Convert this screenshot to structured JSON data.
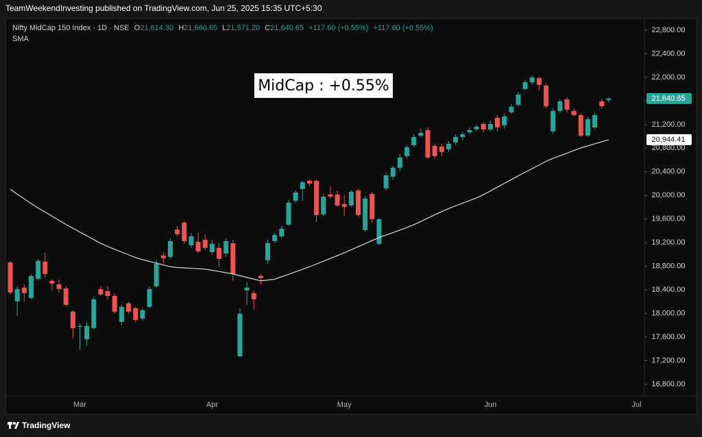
{
  "header": {
    "published": "TeamWeekendInvesting published on TradingView.com, Jun 25, 2025 15:35 UTC+5:30"
  },
  "footer": {
    "brand": "TradingView"
  },
  "chart_data": {
    "type": "candlestick",
    "title": "Nifty MidCap 150 Index · 1D · NSE",
    "ohlc_legend": [
      {
        "key": "O",
        "value": "21,614.30"
      },
      {
        "key": "H",
        "value": "21,660.65"
      },
      {
        "key": "L",
        "value": "21,571.20"
      },
      {
        "key": "C",
        "value": "21,640.65"
      }
    ],
    "change": "+117.60 (+0.55%)",
    "annotation": "MidCap : +0.55%",
    "up_color": "#26a69a",
    "down_color": "#ef5350",
    "grid": false,
    "categories": [
      null,
      null,
      null,
      null,
      null,
      null,
      null,
      null,
      null,
      null,
      "Mar",
      null,
      null,
      null,
      null,
      null,
      null,
      null,
      null,
      null,
      null,
      null,
      null,
      null,
      null,
      null,
      null,
      null,
      null,
      "Apr",
      null,
      null,
      null,
      null,
      null,
      null,
      null,
      null,
      null,
      null,
      null,
      null,
      null,
      null,
      null,
      null,
      null,
      null,
      "May",
      null,
      null,
      null,
      null,
      null,
      null,
      null,
      null,
      null,
      null,
      null,
      null,
      null,
      null,
      null,
      null,
      null,
      null,
      null,
      null,
      "Jun",
      null,
      null,
      null,
      null,
      null,
      null,
      null,
      null,
      null,
      null,
      null,
      null,
      null,
      null,
      null,
      null,
      null,
      null,
      null,
      null,
      "Jul"
    ],
    "open": [
      18866,
      18204,
      18436,
      18262,
      18587,
      18878,
      18553,
      18495,
      18425,
      18030,
      17775,
      17566,
      17752,
      18413,
      18378,
      18297,
      17856,
      18170,
      18088,
      17914,
      18112,
      18460,
      18982,
      18959,
      19423,
      19539,
      19156,
      19214,
      19249,
      19040,
      19110,
      19017,
      19191,
      17276,
      18390,
      18344,
      18634,
      18901,
      19226,
      19307,
      19504,
      19910,
      20108,
      20247,
      20247,
      19679,
      20015,
      20015,
      19852,
      19829,
      20084,
      19412,
      20026,
      19179,
      20120,
      20317,
      20468,
      20665,
      20851,
      21013,
      21106,
      20839,
      20827,
      20781,
      20897,
      20990,
      21071,
      21118,
      21210,
      21118,
      21315,
      21187,
      21407,
      21535,
      21802,
      21918,
      21987,
      21860,
      21083,
      21431,
      21628,
      21431,
      21361,
      21013,
      21152,
      21593,
      21614.3,
      null,
      null,
      null,
      null
    ],
    "high": [
      18890,
      18460,
      18495,
      18670,
      18925,
      19030,
      18576,
      18576,
      18460,
      18054,
      17833,
      17856,
      18286,
      18460,
      18460,
      18344,
      18146,
      18204,
      18112,
      18088,
      18460,
      18901,
      19040,
      19272,
      19481,
      19574,
      19365,
      19365,
      19342,
      19249,
      19191,
      19272,
      19249,
      18088,
      18530,
      18390,
      18669,
      19249,
      19365,
      19481,
      19922,
      20084,
      20247,
      20270,
      20270,
      20026,
      20154,
      20084,
      20003,
      20084,
      20108,
      19992,
      20061,
      19620,
      20386,
      20503,
      20700,
      20850,
      21036,
      21129,
      21152,
      20874,
      20874,
      20920,
      21036,
      21083,
      21152,
      21199,
      21245,
      21268,
      21361,
      21384,
      21547,
      21756,
      21953,
      22034,
      22011,
      21895,
      21477,
      21628,
      21663,
      21477,
      21396,
      21338,
      21396,
      21640,
      21660.65,
      null,
      null,
      null,
      null
    ],
    "low": [
      18320,
      17960,
      18204,
      18240,
      18553,
      18611,
      18379,
      18355,
      18123,
      17590,
      17392,
      17450,
      17729,
      18297,
      18239,
      17995,
      17798,
      17995,
      17856,
      17880,
      18088,
      18437,
      18843,
      18936,
      19307,
      19179,
      19110,
      19017,
      19075,
      18994,
      18785,
      18959,
      18553,
      17250,
      18146,
      18065,
      18495,
      18843,
      19191,
      19272,
      19481,
      19876,
      19899,
      20154,
      19551,
      19656,
      19945,
      19806,
      19655,
      19806,
      19644,
      19388,
      19539,
      19156,
      20084,
      20270,
      20410,
      20619,
      20816,
      20990,
      20619,
      20619,
      20665,
      20735,
      20851,
      20932,
      21036,
      21083,
      21071,
      21083,
      21083,
      21129,
      21384,
      21500,
      21779,
      21883,
      21779,
      21477,
      21048,
      21396,
      21408,
      21338,
      20990,
      20990,
      21129,
      21477,
      21571.2,
      null,
      null,
      null,
      null
    ],
    "close": [
      18355,
      18413,
      18343,
      18634,
      18890,
      18669,
      18507,
      18413,
      18146,
      17752,
      17787,
      17787,
      18239,
      18320,
      18297,
      18030,
      18112,
      18030,
      17891,
      18054,
      18413,
      18843,
      18936,
      19226,
      19342,
      19226,
      19307,
      19052,
      19110,
      19179,
      18924,
      19226,
      18669,
      17996,
      18436,
      18240,
      18599,
      19191,
      19330,
      19435,
      19876,
      20050,
      20224,
      20200,
      19667,
      19980,
      19980,
      19829,
      19806,
      20061,
      19667,
      19945,
      19597,
      19597,
      20340,
      20468,
      20642,
      20816,
      20990,
      21059,
      20642,
      20665,
      20735,
      20874,
      20990,
      21036,
      21106,
      21164,
      21118,
      21210,
      21152,
      21338,
      21500,
      21709,
      21918,
      21999,
      21872,
      21512,
      21431,
      21593,
      21454,
      21361,
      21013,
      21292,
      21361,
      21512,
      21640.65,
      null,
      null,
      null,
      null
    ],
    "sma": {
      "name": "SMA",
      "color": "#d9d9d9",
      "values": [
        20103,
        20022,
        19942,
        19861,
        19787,
        19718,
        19648,
        19578,
        19509,
        19443,
        19379,
        19315,
        19251,
        19187,
        19135,
        19088,
        19040,
        18993,
        18946,
        18912,
        18882,
        18852,
        18822,
        18791,
        18779,
        18772,
        18765,
        18758,
        18751,
        18731,
        18711,
        18690,
        18669,
        18640,
        18611,
        18582,
        18553,
        18565,
        18580,
        18622,
        18664,
        18706,
        18747,
        18790,
        18837,
        18885,
        18932,
        18979,
        19027,
        19079,
        19131,
        19183,
        19235,
        19285,
        19328,
        19370,
        19413,
        19456,
        19503,
        19559,
        19615,
        19671,
        19727,
        19778,
        19823,
        19868,
        19913,
        19958,
        20012,
        20076,
        20140,
        20204,
        20268,
        20331,
        20393,
        20454,
        20515,
        20577,
        20627,
        20671,
        20715,
        20760,
        20804,
        20840,
        20875,
        20910,
        20944.41,
        null,
        null,
        null,
        null
      ]
    },
    "price_labels": [
      {
        "value": 21640.65,
        "label": "21,640.65",
        "color": "#26a69a",
        "text_color": "#ffffff"
      },
      {
        "value": 20944.41,
        "label": "20,944.41",
        "color": "#ffffff",
        "text_color": "#131722"
      }
    ],
    "ylim": [
      16800,
      22800
    ],
    "yticks": [
      {
        "value": 16800,
        "label": "16,800.00"
      },
      {
        "value": 17200,
        "label": "17,200.00"
      },
      {
        "value": 17600,
        "label": "17,600.00"
      },
      {
        "value": 18000,
        "label": "18,000.00"
      },
      {
        "value": 18400,
        "label": "18,400.00"
      },
      {
        "value": 18800,
        "label": "18,800.00"
      },
      {
        "value": 19200,
        "label": "19,200.00"
      },
      {
        "value": 19600,
        "label": "19,600.00"
      },
      {
        "value": 20000,
        "label": "20,000.00"
      },
      {
        "value": 20400,
        "label": "20,400.00"
      },
      {
        "value": 20800,
        "label": "20,800.00"
      },
      {
        "value": 21200,
        "label": "21,200.00"
      },
      {
        "value": 21600,
        "label": "21,600.00"
      },
      {
        "value": 22000,
        "label": "22,000.00"
      },
      {
        "value": 22400,
        "label": "22,400.00"
      },
      {
        "value": 22800,
        "label": "22,800.00"
      }
    ]
  }
}
